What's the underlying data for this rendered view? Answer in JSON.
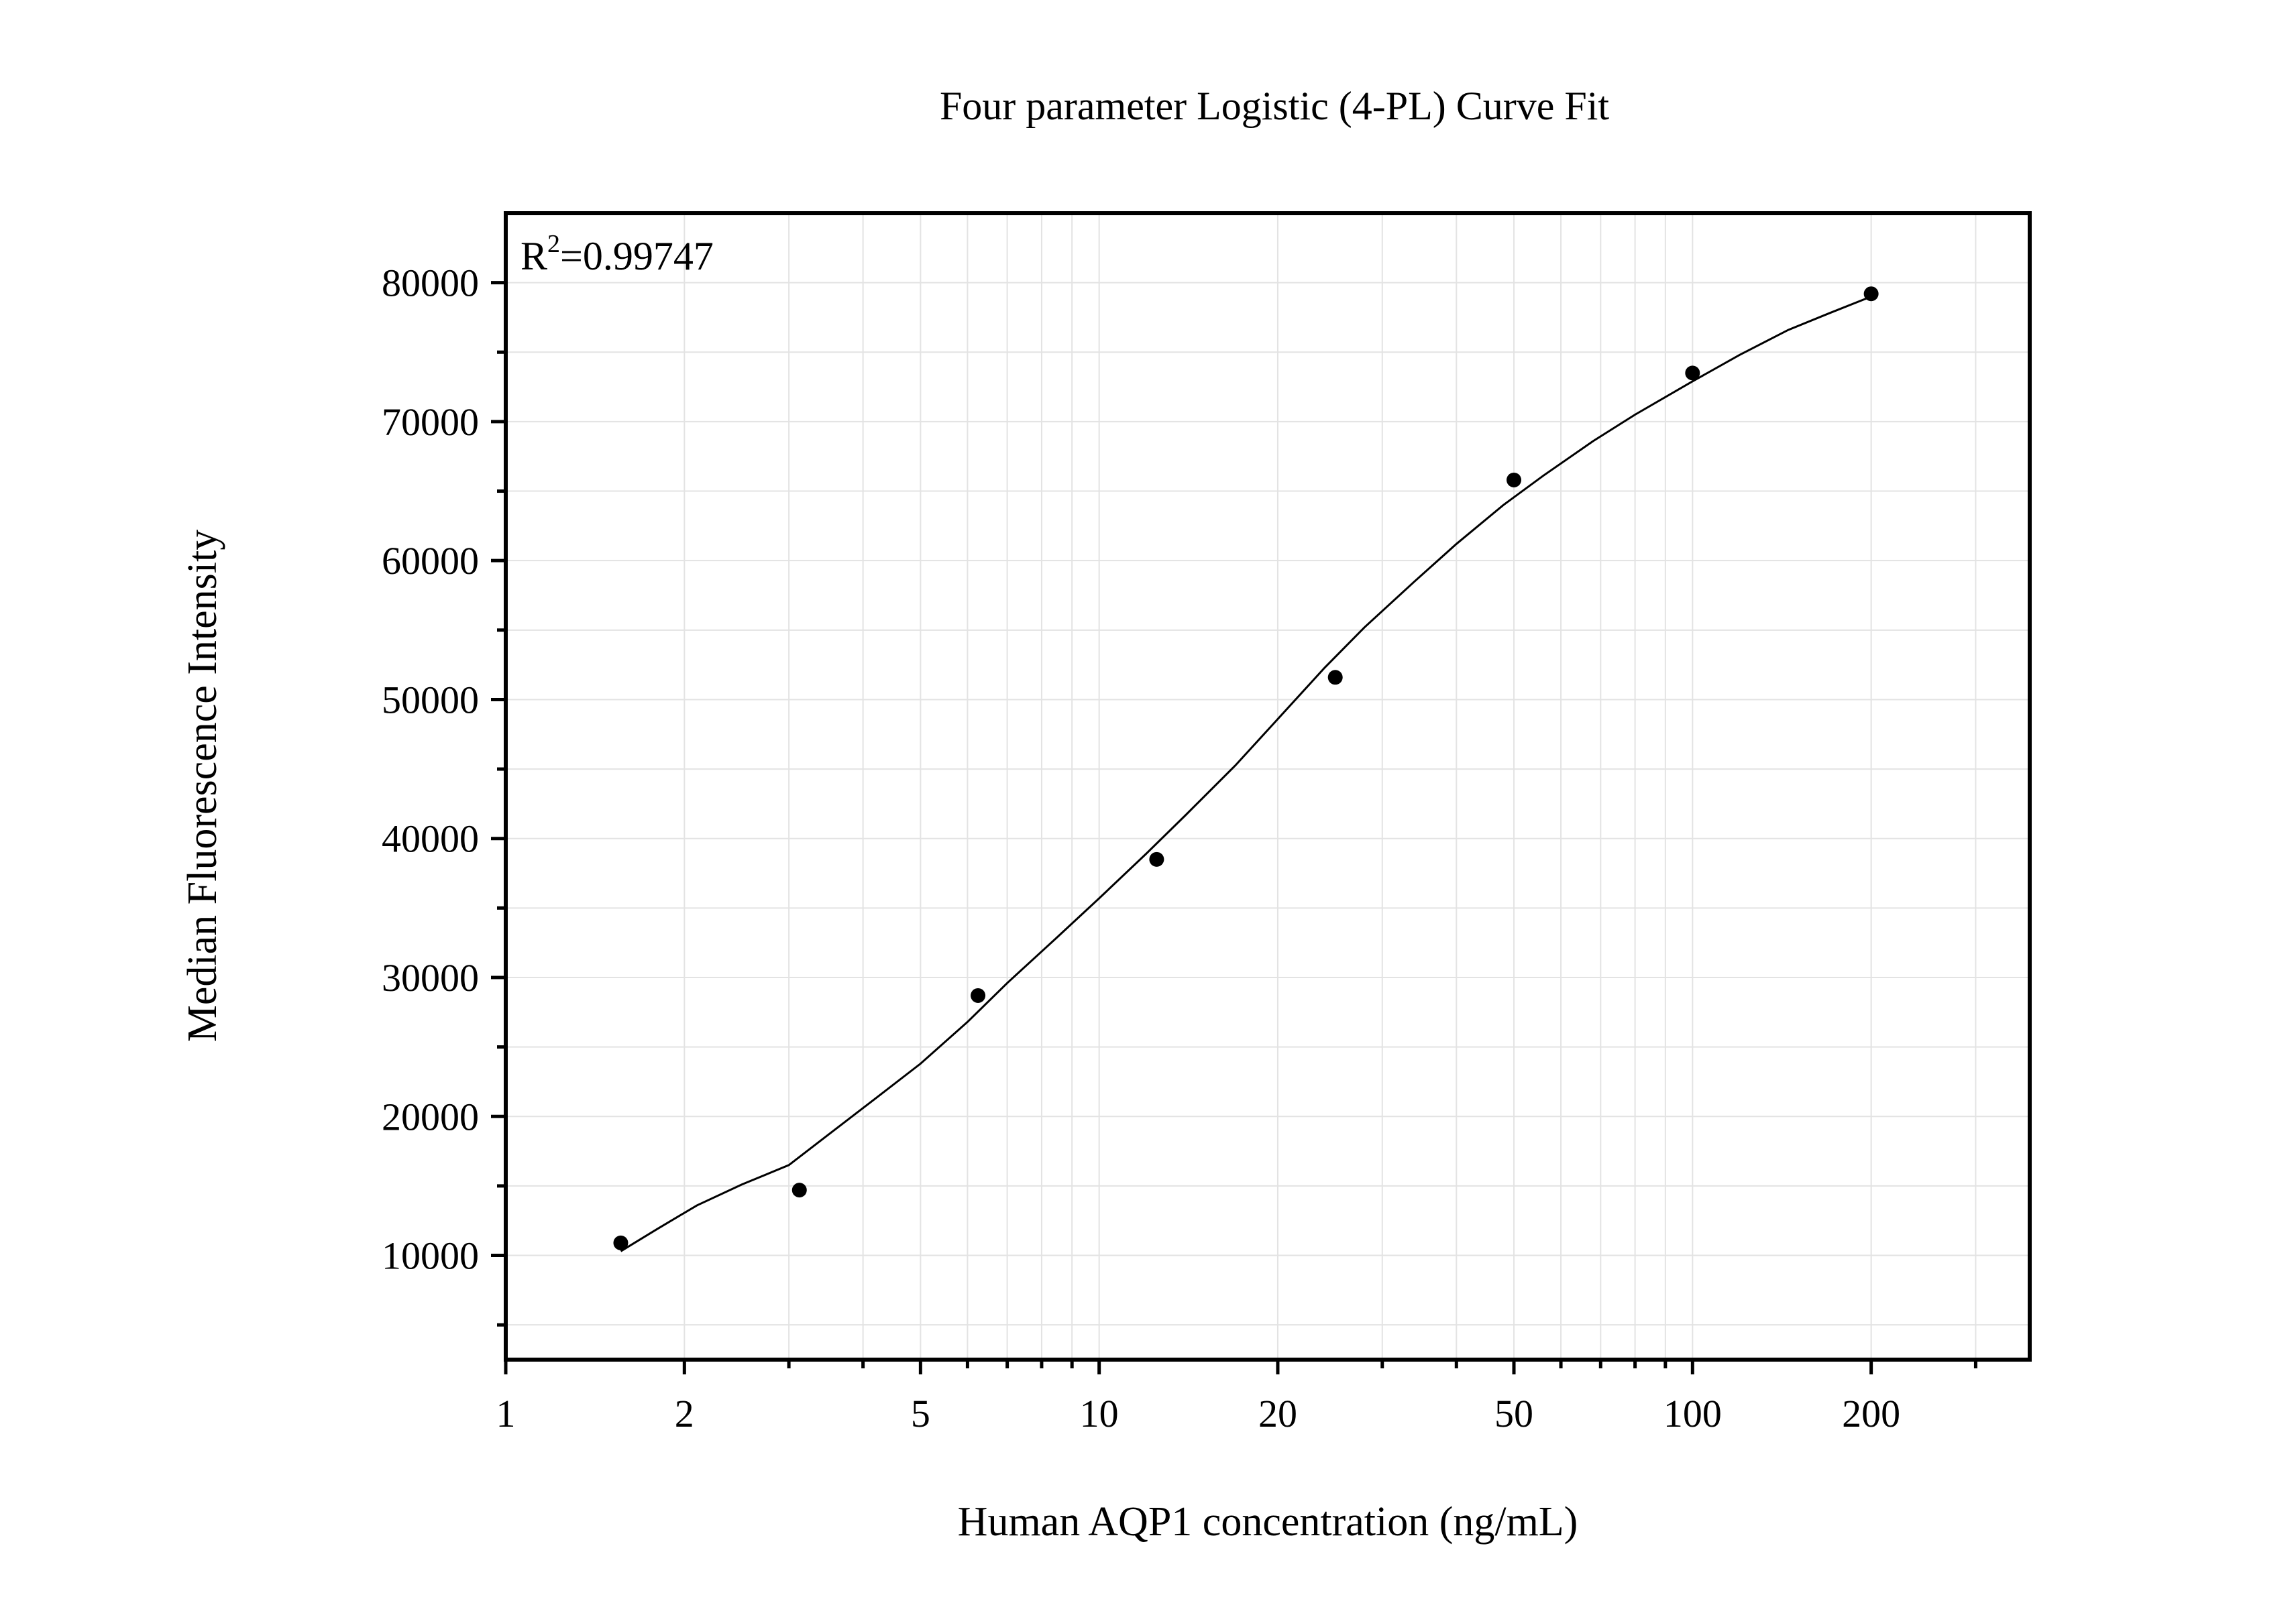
{
  "chart_data": {
    "type": "scatter",
    "title": "Four parameter Logistic (4-PL) Curve Fit",
    "xlabel": "Human AQP1 concentration (ng/mL)",
    "ylabel": "Median Fluorescence Intensity",
    "x_scale": "log",
    "xlim": [
      1,
      370
    ],
    "ylim": [
      2500,
      85000
    ],
    "grid": true,
    "x_ticks": [
      1,
      2,
      5,
      10,
      20,
      50,
      100,
      200
    ],
    "x_tick_labels": [
      "1",
      "2",
      "5",
      "10",
      "20",
      "50",
      "100",
      "200"
    ],
    "y_ticks": [
      10000,
      20000,
      30000,
      40000,
      50000,
      60000,
      70000,
      80000
    ],
    "y_tick_labels": [
      "10000",
      "20000",
      "30000",
      "40000",
      "50000",
      "60000",
      "70000",
      "80000"
    ],
    "annotation": {
      "base": "R",
      "sup": "2",
      "value": "=0.99747"
    },
    "series": [
      {
        "type": "scatter",
        "x": [
          1.5625,
          3.125,
          6.25,
          12.5,
          25,
          50,
          100,
          200
        ],
        "y": [
          10900,
          14700,
          28700,
          38500,
          51600,
          65800,
          73500,
          79200
        ]
      },
      {
        "type": "line",
        "x": [
          1.5625,
          1.8,
          2.1,
          2.5,
          3.0,
          3.5,
          4.2,
          5.0,
          6.0,
          7.0,
          8.5,
          10,
          12,
          14,
          17,
          20,
          24,
          28,
          34,
          40,
          48,
          56,
          68,
          80,
          100,
          120,
          145,
          170,
          200
        ],
        "y": [
          10300,
          11900,
          13600,
          15100,
          16500,
          18700,
          21300,
          23800,
          26800,
          29600,
          32900,
          35700,
          38900,
          41700,
          45300,
          48600,
          52300,
          55200,
          58500,
          61200,
          64000,
          66100,
          68600,
          70500,
          72900,
          74800,
          76600,
          77800,
          79000
        ]
      }
    ]
  }
}
